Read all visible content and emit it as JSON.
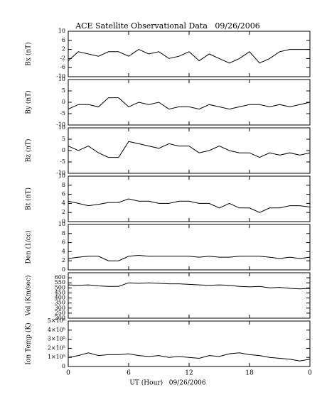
{
  "title": "ACE Satellite Observational Data   09/26/2006",
  "xlabel": "UT (Hour)   09/26/2006",
  "xlim": [
    0,
    24
  ],
  "xticks": [
    0,
    6,
    12,
    18,
    {
      "value": 24,
      "label": "0"
    }
  ],
  "chart_data": [
    {
      "type": "line",
      "ylabel": "Bx (nT)",
      "color": "#000000",
      "ylim": [
        -10,
        10
      ],
      "yticks": [
        -10,
        -6,
        -2,
        2,
        6,
        10
      ],
      "x": [
        0,
        1,
        2,
        3,
        4,
        5,
        6,
        7,
        8,
        9,
        10,
        11,
        12,
        13,
        14,
        15,
        16,
        17,
        18,
        19,
        20,
        21,
        22,
        23,
        24
      ],
      "values": [
        -3,
        1,
        0,
        -1,
        1,
        1,
        -1,
        2,
        0,
        1,
        -2,
        -1,
        1,
        -3,
        0,
        -2,
        -4,
        -2,
        1,
        -4,
        -2,
        1,
        2,
        2,
        2
      ]
    },
    {
      "type": "line",
      "ylabel": "By (nT)",
      "color": "#000000",
      "ylim": [
        -10,
        10
      ],
      "yticks": [
        -10,
        -5,
        0,
        5,
        10
      ],
      "x": [
        0,
        1,
        2,
        3,
        4,
        5,
        6,
        7,
        8,
        9,
        10,
        11,
        12,
        13,
        14,
        15,
        16,
        17,
        18,
        19,
        20,
        21,
        22,
        23,
        24
      ],
      "values": [
        -3,
        -1,
        -1,
        -2,
        2,
        2,
        -2,
        0,
        -1,
        0,
        -3,
        -2,
        -2,
        -3,
        -1,
        -2,
        -3,
        -2,
        -1,
        -1,
        -2,
        -1,
        -2,
        -1,
        0
      ]
    },
    {
      "type": "line",
      "ylabel": "Bz (nT)",
      "color": "#000000",
      "ylim": [
        -10,
        10
      ],
      "yticks": [
        -10,
        -5,
        0,
        5,
        10
      ],
      "x": [
        0,
        1,
        2,
        3,
        4,
        5,
        6,
        7,
        8,
        9,
        10,
        11,
        12,
        13,
        14,
        15,
        16,
        17,
        18,
        19,
        20,
        21,
        22,
        23,
        24
      ],
      "values": [
        2,
        0,
        2,
        -1,
        -3,
        -3,
        4,
        3,
        2,
        1,
        3,
        2,
        2,
        -1,
        0,
        2,
        0,
        -1,
        -1,
        -3,
        -1,
        -2,
        -1,
        -2,
        -1
      ]
    },
    {
      "type": "line",
      "ylabel": "Bt (nT)",
      "color": "#000000",
      "ylim": [
        0,
        10
      ],
      "yticks": [
        0,
        2,
        4,
        6,
        8,
        10
      ],
      "x": [
        0,
        1,
        2,
        3,
        4,
        5,
        6,
        7,
        8,
        9,
        10,
        11,
        12,
        13,
        14,
        15,
        16,
        17,
        18,
        19,
        20,
        21,
        22,
        23,
        24
      ],
      "values": [
        4.5,
        4,
        3.5,
        3.8,
        4.2,
        4.2,
        5,
        4.5,
        4.5,
        4,
        4,
        4.5,
        4.5,
        4,
        4,
        3,
        4,
        3,
        3,
        2,
        3,
        3,
        3.5,
        3.5,
        3.2
      ]
    },
    {
      "type": "line",
      "ylabel": "Den (1/cc)",
      "color": "#000000",
      "ylim": [
        0,
        10
      ],
      "yticks": [
        0,
        2,
        4,
        6,
        8,
        10
      ],
      "x": [
        0,
        1,
        2,
        3,
        4,
        5,
        6,
        7,
        8,
        9,
        10,
        11,
        12,
        13,
        14,
        15,
        16,
        17,
        18,
        19,
        20,
        21,
        22,
        23,
        24
      ],
      "values": [
        2.5,
        2.8,
        3,
        3,
        2,
        2,
        3,
        3.2,
        3,
        3,
        3,
        3,
        3,
        2.8,
        3,
        2.8,
        2.8,
        3,
        3,
        3,
        2.8,
        2.5,
        2.8,
        2.5,
        2.8
      ]
    },
    {
      "type": "line",
      "ylabel": "Vel (Km/sec)",
      "color": "#000000",
      "ylim": [
        200,
        650
      ],
      "yticks": [
        200,
        250,
        300,
        350,
        400,
        450,
        500,
        550,
        600
      ],
      "x": [
        0,
        1,
        2,
        3,
        4,
        5,
        6,
        7,
        8,
        9,
        10,
        11,
        12,
        13,
        14,
        15,
        16,
        17,
        18,
        19,
        20,
        21,
        22,
        23,
        24
      ],
      "values": [
        530,
        525,
        530,
        520,
        515,
        515,
        550,
        545,
        550,
        545,
        540,
        540,
        535,
        530,
        525,
        530,
        525,
        515,
        510,
        515,
        500,
        505,
        495,
        490,
        495
      ]
    },
    {
      "type": "line",
      "ylabel": "Ion Temp (K)",
      "color": "#000000",
      "ylim": [
        0,
        500000
      ],
      "yticks": [
        0,
        {
          "value": 100000,
          "label": "1×10⁵"
        },
        {
          "value": 200000,
          "label": "2×10⁵"
        },
        {
          "value": 300000,
          "label": "3×10⁵"
        },
        {
          "value": 400000,
          "label": "4×10⁵"
        },
        {
          "value": 500000,
          "label": "5×10⁵"
        }
      ],
      "x": [
        0,
        1,
        2,
        3,
        4,
        5,
        6,
        7,
        8,
        9,
        10,
        11,
        12,
        13,
        14,
        15,
        16,
        17,
        18,
        19,
        20,
        21,
        22,
        23,
        24
      ],
      "values": [
        100000,
        120000,
        150000,
        120000,
        130000,
        130000,
        140000,
        120000,
        110000,
        120000,
        100000,
        110000,
        100000,
        90000,
        120000,
        110000,
        140000,
        150000,
        130000,
        120000,
        100000,
        90000,
        80000,
        60000,
        80000
      ]
    }
  ]
}
